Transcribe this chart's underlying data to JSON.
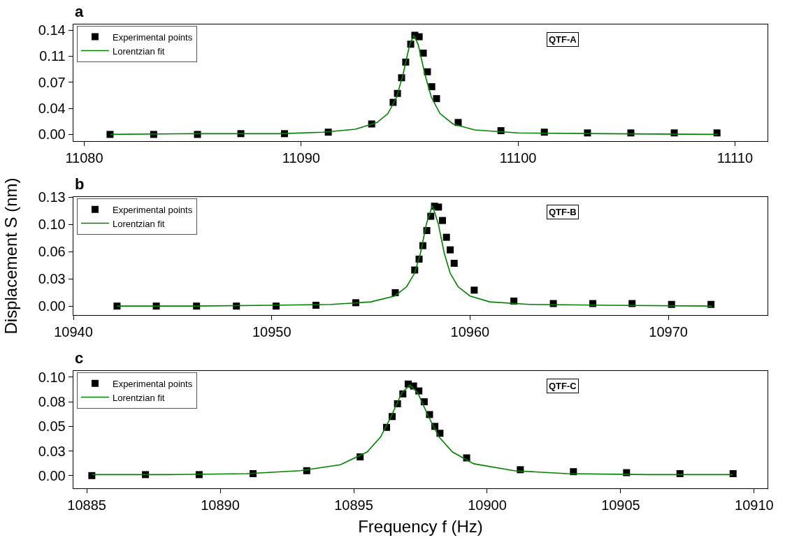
{
  "chart_data": [
    {
      "type": "scatter",
      "title": "a",
      "annotations": [
        "QTF-A"
      ],
      "legend": "top left",
      "grid": false,
      "marker": "square",
      "xlim": [
        11079.5,
        11111.5
      ],
      "xticks": [
        11080,
        11090,
        11100,
        11110
      ],
      "ylim": [
        -0.009,
        0.1475
      ],
      "yticks": [
        {
          "value": 0,
          "label": "0.00"
        },
        {
          "value": 0.035,
          "label": "0.04"
        },
        {
          "value": 0.07,
          "label": "0.07"
        },
        {
          "value": 0.105,
          "label": "0.11"
        },
        {
          "value": 0.14,
          "label": "0.14"
        }
      ],
      "series": [
        {
          "name": "Experimental points",
          "type": "scatter",
          "color": "#000000",
          "x": [
            11081.19,
            11083.2,
            11085.22,
            11087.22,
            11089.23,
            11091.25,
            11093.25,
            11094.24,
            11094.44,
            11094.63,
            11094.82,
            11095.05,
            11095.24,
            11095.44,
            11095.63,
            11095.82,
            11096.02,
            11096.24,
            11097.24,
            11099.21,
            11101.21,
            11103.2,
            11105.2,
            11107.2,
            11109.17
          ],
          "values": [
            0.0,
            0.0,
            0.0,
            0.001,
            0.001,
            0.003,
            0.014,
            0.043,
            0.055,
            0.076,
            0.097,
            0.121,
            0.133,
            0.131,
            0.109,
            0.084,
            0.064,
            0.048,
            0.016,
            0.005,
            0.003,
            0.002,
            0.002,
            0.002,
            0.002
          ]
        },
        {
          "name": "Lorentzian fit",
          "type": "line",
          "marker": "none",
          "color": "#008000",
          "x": [
            11081.2,
            11085,
            11089,
            11091,
            11092.5,
            11093.5,
            11094,
            11094.4,
            11094.7,
            11095,
            11095.2,
            11095.4,
            11095.7,
            11096,
            11096.4,
            11097,
            11098,
            11100,
            11104,
            11109.2
          ],
          "values": [
            0.0,
            0.001,
            0.001,
            0.003,
            0.007,
            0.016,
            0.028,
            0.05,
            0.081,
            0.12,
            0.133,
            0.12,
            0.081,
            0.05,
            0.028,
            0.014,
            0.006,
            0.002,
            0.001,
            0.0
          ]
        }
      ]
    },
    {
      "type": "scatter",
      "title": "b",
      "ylabel": "Displacement S (nm)",
      "annotations": [
        "QTF-B"
      ],
      "legend": "top left",
      "grid": false,
      "marker": "square",
      "xlim": [
        10940,
        10975
      ],
      "xticks": [
        10940,
        10950,
        10960,
        10970
      ],
      "ylim": [
        -0.0107,
        0.13
      ],
      "yticks": [
        {
          "value": 0,
          "label": "0.00"
        },
        {
          "value": 0.0325,
          "label": "0.03"
        },
        {
          "value": 0.065,
          "label": "0.06"
        },
        {
          "value": 0.0975,
          "label": "0.10"
        },
        {
          "value": 0.13,
          "label": "0.13"
        }
      ],
      "series": [
        {
          "name": "Experimental points",
          "type": "scatter",
          "color": "#000000",
          "x": [
            10942.2,
            10944.18,
            10946.21,
            10948.22,
            10950.22,
            10952.23,
            10954.24,
            10956.23,
            10957.21,
            10957.43,
            10957.62,
            10957.82,
            10958.02,
            10958.21,
            10958.41,
            10958.61,
            10958.81,
            10959.0,
            10959.2,
            10960.21,
            10962.21,
            10964.2,
            10966.19,
            10968.17,
            10970.16,
            10972.15
          ],
          "values": [
            0.0,
            0.0,
            0.0,
            0.0,
            0.0,
            0.001,
            0.004,
            0.016,
            0.043,
            0.056,
            0.072,
            0.09,
            0.107,
            0.119,
            0.118,
            0.102,
            0.082,
            0.067,
            0.051,
            0.019,
            0.006,
            0.003,
            0.003,
            0.003,
            0.002,
            0.002
          ]
        },
        {
          "name": "Lorentzian fit",
          "type": "line",
          "marker": "none",
          "color": "#008000",
          "x": [
            10942.2,
            10946,
            10950,
            10953,
            10955,
            10956.2,
            10956.8,
            10957.2,
            10957.5,
            10957.8,
            10958.1,
            10958.4,
            10958.7,
            10959,
            10959.4,
            10960,
            10961,
            10963,
            10967,
            10972.2
          ],
          "values": [
            0.0,
            0.0,
            0.001,
            0.002,
            0.005,
            0.012,
            0.023,
            0.039,
            0.063,
            0.098,
            0.12,
            0.098,
            0.063,
            0.039,
            0.023,
            0.012,
            0.005,
            0.002,
            0.001,
            0.0
          ]
        }
      ]
    },
    {
      "type": "scatter",
      "title": "c",
      "xlabel": "Frequency f (Hz)",
      "annotations": [
        "QTF-C"
      ],
      "legend": "top left",
      "grid": false,
      "marker": "square",
      "xlim": [
        10884.5,
        10910.5
      ],
      "xticks": [
        10885,
        10890,
        10895,
        10900,
        10905,
        10910
      ],
      "ylim": [
        -0.0129,
        0.1063
      ],
      "yticks": [
        {
          "value": 0,
          "label": "0.00"
        },
        {
          "value": 0.025,
          "label": "0.03"
        },
        {
          "value": 0.05,
          "label": "0.05"
        },
        {
          "value": 0.075,
          "label": "0.08"
        },
        {
          "value": 0.1,
          "label": "0.10"
        }
      ],
      "series": [
        {
          "name": "Experimental points",
          "type": "scatter",
          "color": "#000000",
          "x": [
            10885.19,
            10887.2,
            10889.21,
            10891.23,
            10893.24,
            10895.24,
            10896.23,
            10896.44,
            10896.64,
            10896.84,
            10897.04,
            10897.24,
            10897.44,
            10897.64,
            10897.84,
            10898.04,
            10898.23,
            10899.23,
            10901.24,
            10903.23,
            10905.22,
            10907.22,
            10909.21
          ],
          "values": [
            0.0,
            0.001,
            0.001,
            0.002,
            0.005,
            0.019,
            0.049,
            0.06,
            0.073,
            0.083,
            0.093,
            0.091,
            0.086,
            0.075,
            0.062,
            0.05,
            0.043,
            0.018,
            0.006,
            0.004,
            0.003,
            0.002,
            0.002
          ]
        },
        {
          "name": "Lorentzian fit",
          "type": "line",
          "marker": "none",
          "color": "#008000",
          "x": [
            10885.2,
            10888,
            10891,
            10893,
            10894.5,
            10895.5,
            10896,
            10896.4,
            10896.8,
            10897.1,
            10897.4,
            10897.8,
            10898.2,
            10898.7,
            10899.5,
            10901,
            10903,
            10906,
            10909.2
          ],
          "values": [
            0.001,
            0.001,
            0.002,
            0.005,
            0.011,
            0.024,
            0.039,
            0.06,
            0.084,
            0.092,
            0.084,
            0.06,
            0.039,
            0.024,
            0.012,
            0.005,
            0.002,
            0.001,
            0.001
          ]
        }
      ]
    }
  ]
}
